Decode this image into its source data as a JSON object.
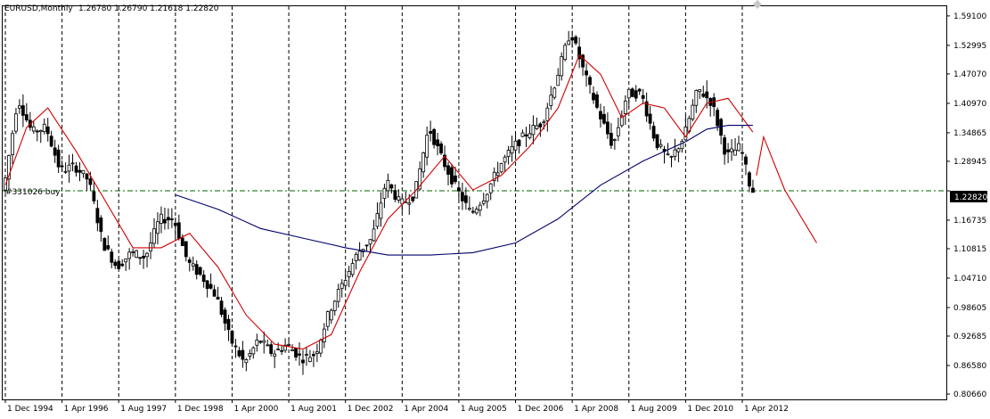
{
  "header": {
    "symbol_timeframe": "EURUSD,Monthly",
    "ohlc": "1.26780 1.26790 1.21618 1.22820"
  },
  "order_label": "#331026 buy",
  "current_price_label": "1.22820",
  "colors": {
    "bull_candle": "#ffffff",
    "bear_candle": "#000000",
    "candle_outline": "#000000",
    "ma_fast": "#d00000",
    "ma_slow": "#00006e",
    "projection": "#d00000",
    "order_line": "#006400",
    "price_badge": "#000000",
    "grid_vertical": "#000000"
  },
  "chart_data": {
    "type": "candlestick",
    "y_axis": {
      "min": 0.8066,
      "max": 1.6,
      "ticks": [
        "1.59100",
        "1.52995",
        "1.47070",
        "1.40970",
        "1.34865",
        "1.28945",
        "1.22820",
        "1.16735",
        "1.10815",
        "1.04710",
        "0.98605",
        "0.92685",
        "0.86580",
        "0.80660"
      ]
    },
    "x_axis": {
      "ticks": [
        "1 Dec 1994",
        "1 Apr 1996",
        "1 Aug 1997",
        "1 Dec 1998",
        "1 Apr 2000",
        "1 Aug 2001",
        "1 Dec 2002",
        "1 Apr 2004",
        "1 Aug 2005",
        "1 Dec 2006",
        "1 Apr 2008",
        "1 Aug 2009",
        "1 Dec 2010",
        "1 Apr 2012"
      ]
    },
    "grid": "vertical-dashed",
    "price_path": [
      [
        "1994-12",
        1.23
      ],
      [
        "1995-04",
        1.42
      ],
      [
        "1995-08",
        1.35
      ],
      [
        "1995-12",
        1.36
      ],
      [
        "1996-04",
        1.27
      ],
      [
        "1996-08",
        1.28
      ],
      [
        "1996-12",
        1.25
      ],
      [
        "1997-04",
        1.12
      ],
      [
        "1997-08",
        1.07
      ],
      [
        "1997-12",
        1.1
      ],
      [
        "1998-04",
        1.09
      ],
      [
        "1998-08",
        1.17
      ],
      [
        "1998-12",
        1.17
      ],
      [
        "1999-04",
        1.08
      ],
      [
        "1999-08",
        1.05
      ],
      [
        "1999-12",
        1.01
      ],
      [
        "2000-04",
        0.92
      ],
      [
        "2000-08",
        0.87
      ],
      [
        "2000-12",
        0.92
      ],
      [
        "2001-04",
        0.89
      ],
      [
        "2001-08",
        0.91
      ],
      [
        "2001-12",
        0.88
      ],
      [
        "2002-04",
        0.89
      ],
      [
        "2002-08",
        0.98
      ],
      [
        "2002-12",
        1.04
      ],
      [
        "2003-04",
        1.1
      ],
      [
        "2003-08",
        1.13
      ],
      [
        "2003-12",
        1.25
      ],
      [
        "2004-04",
        1.2
      ],
      [
        "2004-08",
        1.22
      ],
      [
        "2004-12",
        1.36
      ],
      [
        "2005-04",
        1.29
      ],
      [
        "2005-08",
        1.23
      ],
      [
        "2005-12",
        1.18
      ],
      [
        "2006-04",
        1.22
      ],
      [
        "2006-08",
        1.28
      ],
      [
        "2006-12",
        1.32
      ],
      [
        "2007-04",
        1.35
      ],
      [
        "2007-08",
        1.37
      ],
      [
        "2007-12",
        1.46
      ],
      [
        "2008-04",
        1.56
      ],
      [
        "2008-08",
        1.47
      ],
      [
        "2008-12",
        1.39
      ],
      [
        "2009-04",
        1.32
      ],
      [
        "2009-08",
        1.43
      ],
      [
        "2009-12",
        1.43
      ],
      [
        "2010-04",
        1.33
      ],
      [
        "2010-08",
        1.29
      ],
      [
        "2010-12",
        1.34
      ],
      [
        "2011-04",
        1.44
      ],
      [
        "2011-08",
        1.41
      ],
      [
        "2011-12",
        1.3
      ],
      [
        "2012-04",
        1.32
      ],
      [
        "2012-07",
        1.2282
      ]
    ],
    "ma_fast_path": [
      [
        "1994-12",
        1.24
      ],
      [
        "1995-06",
        1.36
      ],
      [
        "1995-12",
        1.4
      ],
      [
        "1996-08",
        1.31
      ],
      [
        "1997-04",
        1.21
      ],
      [
        "1997-12",
        1.11
      ],
      [
        "1998-08",
        1.11
      ],
      [
        "1999-04",
        1.14
      ],
      [
        "1999-12",
        1.07
      ],
      [
        "2000-08",
        0.97
      ],
      [
        "2001-04",
        0.91
      ],
      [
        "2001-12",
        0.9
      ],
      [
        "2002-08",
        0.93
      ],
      [
        "2003-04",
        1.06
      ],
      [
        "2003-12",
        1.17
      ],
      [
        "2004-08",
        1.23
      ],
      [
        "2005-04",
        1.3
      ],
      [
        "2005-12",
        1.23
      ],
      [
        "2006-08",
        1.26
      ],
      [
        "2007-04",
        1.32
      ],
      [
        "2007-12",
        1.4
      ],
      [
        "2008-06",
        1.51
      ],
      [
        "2008-12",
        1.47
      ],
      [
        "2009-06",
        1.38
      ],
      [
        "2009-12",
        1.41
      ],
      [
        "2010-06",
        1.4
      ],
      [
        "2010-12",
        1.34
      ],
      [
        "2011-06",
        1.41
      ],
      [
        "2011-12",
        1.42
      ],
      [
        "2012-07",
        1.35
      ]
    ],
    "ma_slow_path": [
      [
        "1998-12",
        1.22
      ],
      [
        "1999-12",
        1.19
      ],
      [
        "2000-12",
        1.15
      ],
      [
        "2001-12",
        1.13
      ],
      [
        "2002-12",
        1.11
      ],
      [
        "2003-12",
        1.095
      ],
      [
        "2004-12",
        1.095
      ],
      [
        "2005-12",
        1.1
      ],
      [
        "2006-12",
        1.12
      ],
      [
        "2007-12",
        1.17
      ],
      [
        "2008-12",
        1.24
      ],
      [
        "2009-12",
        1.29
      ],
      [
        "2010-12",
        1.33
      ],
      [
        "2011-06",
        1.356
      ],
      [
        "2011-12",
        1.364
      ],
      [
        "2012-07",
        1.364
      ]
    ],
    "projection_path": [
      [
        "2012-08",
        1.26
      ],
      [
        "2012-10",
        1.34
      ],
      [
        "2013-04",
        1.23
      ],
      [
        "2014-01",
        1.12
      ]
    ],
    "order_price": 1.2282
  }
}
